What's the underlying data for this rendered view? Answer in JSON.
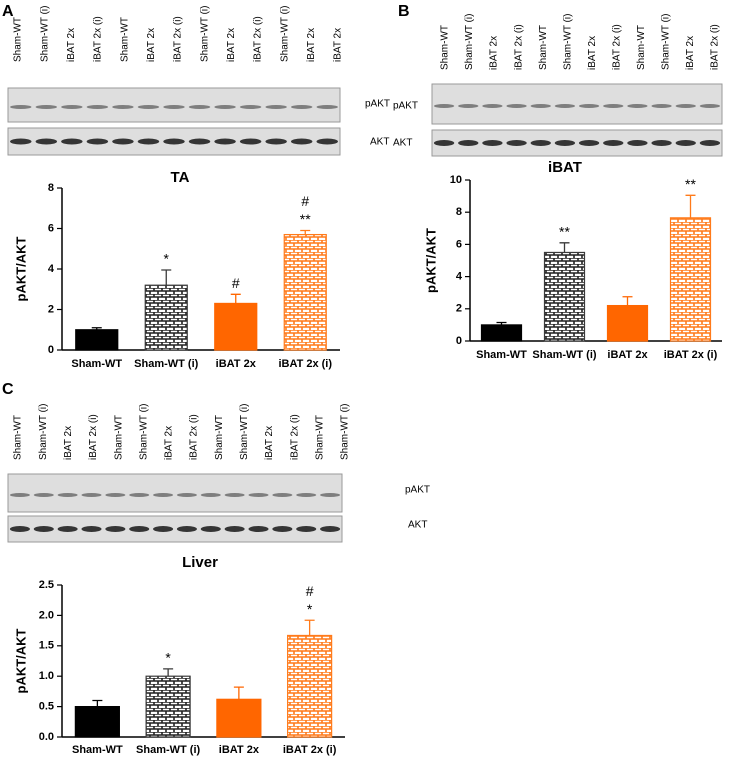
{
  "chart_data": [
    {
      "type": "bar",
      "panel": "A",
      "title": "TA",
      "y_label": "pAKT/AKT",
      "lanes": [
        "Sham-WT",
        "Sham-WT (i)",
        "iBAT 2x",
        "iBAT 2x (i)",
        "Sham-WT",
        "iBAT 2x",
        "iBAT 2x (i)",
        "Sham-WT (i)",
        "iBAT 2x",
        "iBAT 2x (i)",
        "Sham-WT (i)",
        "iBAT 2x",
        "iBAT 2x"
      ],
      "blots": [
        "pAKT",
        "AKT"
      ],
      "categories": [
        "Sham-WT",
        "Sham-WT (i)",
        "iBAT 2x",
        "iBAT 2x (i)"
      ],
      "values": [
        1.0,
        3.2,
        2.3,
        5.7
      ],
      "errors": [
        0.1,
        0.75,
        0.45,
        0.2
      ],
      "annotations": [
        [],
        [
          "*"
        ],
        [
          "#"
        ],
        [
          "#",
          "**"
        ]
      ],
      "colors": [
        "#000000",
        "#3a3a3a",
        "#ff6600",
        "#ff7a1a"
      ],
      "patterned": [
        false,
        true,
        false,
        true
      ],
      "ylim": [
        0,
        8
      ],
      "yticks": [
        0,
        2,
        4,
        6,
        8
      ]
    },
    {
      "type": "bar",
      "panel": "B",
      "title": "iBAT",
      "y_label": "pAKT/AKT",
      "lanes": [
        "Sham-WT",
        "Sham-WT (i)",
        "iBAT 2x",
        "iBAT 2x (i)",
        "Sham-WT",
        "Sham-WT (i)",
        "iBAT 2x",
        "iBAT 2x (i)",
        "Sham-WT",
        "Sham-WT (i)",
        "iBAT 2x",
        "iBAT 2x (i)"
      ],
      "blots": [
        "pAKT",
        "AKT"
      ],
      "categories": [
        "Sham-WT",
        "Sham-WT (i)",
        "iBAT 2x",
        "iBAT 2x (i)"
      ],
      "values": [
        1.0,
        5.5,
        2.2,
        7.65
      ],
      "errors": [
        0.15,
        0.6,
        0.55,
        1.4
      ],
      "annotations": [
        [],
        [
          "**"
        ],
        [],
        [
          "**"
        ]
      ],
      "colors": [
        "#000000",
        "#3a3a3a",
        "#ff6600",
        "#ff7a1a"
      ],
      "patterned": [
        false,
        true,
        false,
        true
      ],
      "ylim": [
        0,
        10
      ],
      "yticks": [
        0,
        2,
        4,
        6,
        8,
        10
      ]
    },
    {
      "type": "bar",
      "panel": "C",
      "title": "Liver",
      "y_label": "pAKT/AKT",
      "lanes": [
        "Sham-WT",
        "Sham-WT (i)",
        "iBAT 2x",
        "iBAT 2x (i)",
        "Sham-WT",
        "Sham-WT (i)",
        "iBAT 2x",
        "iBAT 2x (i)",
        "Sham-WT",
        "Sham-WT (i)",
        "iBAT 2x",
        "iBAT 2x (i)",
        "Sham-WT",
        "Sham-WT (i)"
      ],
      "blots": [
        "pAKT",
        "AKT"
      ],
      "categories": [
        "Sham-WT",
        "Sham-WT (i)",
        "iBAT 2x",
        "iBAT 2x (i)"
      ],
      "values": [
        0.5,
        1.0,
        0.62,
        1.67
      ],
      "errors": [
        0.1,
        0.12,
        0.2,
        0.25
      ],
      "annotations": [
        [],
        [
          "*"
        ],
        [],
        [
          "#",
          "*"
        ]
      ],
      "colors": [
        "#000000",
        "#3a3a3a",
        "#ff6600",
        "#ff7a1a"
      ],
      "patterned": [
        false,
        true,
        false,
        true
      ],
      "ylim": [
        0,
        2.5
      ],
      "yticks": [
        {
          "value": 0,
          "label": "0.0"
        },
        0.5,
        {
          "value": 1,
          "label": "1.0"
        },
        1.5,
        {
          "value": 2,
          "label": "2.0"
        },
        2.5
      ]
    }
  ]
}
